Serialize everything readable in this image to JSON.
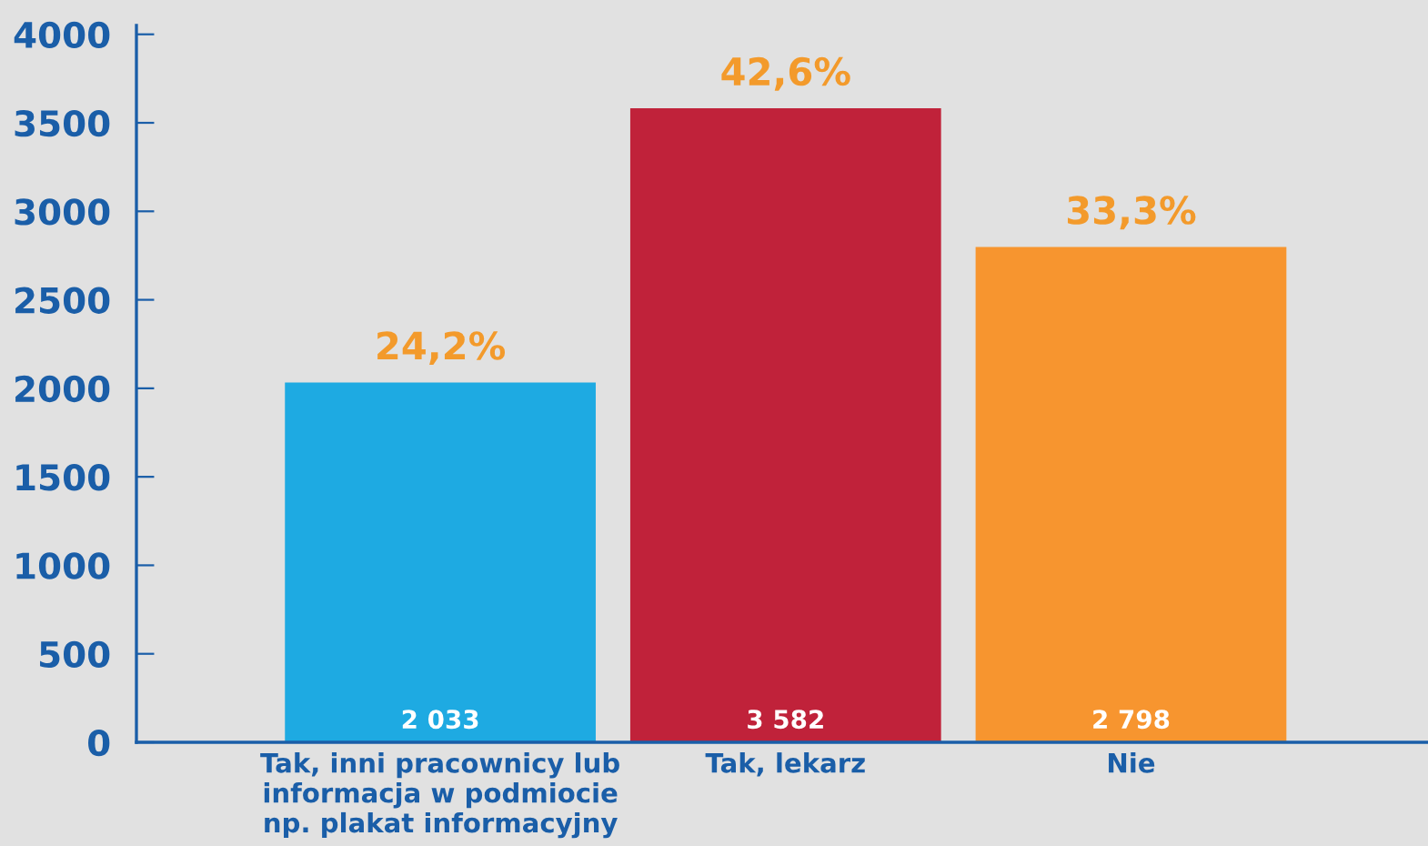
{
  "chart_data": {
    "type": "bar",
    "categories": [
      "Tak, inni pracownicy lub\ninformacja w podmiocie\nnp. plakat informacyjny",
      "Tak, lekarz",
      "Nie"
    ],
    "values": [
      2033,
      3582,
      2798
    ],
    "colors": [
      "#1eaae2",
      "#c0223a",
      "#f7952f"
    ],
    "value_labels": [
      "2 033",
      "3 582",
      "2 798"
    ],
    "annotations": [
      {
        "text": "24,2%",
        "x": "Tak, inni pracownicy lub\ninformacja w podmiocie\nnp. plakat informacyjny",
        "y": 2033
      },
      {
        "text": "42,6%",
        "x": "Tak, lekarz",
        "y": 3582
      },
      {
        "text": "33,3%",
        "x": "Nie",
        "y": 2798
      }
    ],
    "ylim": [
      0,
      4050
    ],
    "yticks": [
      0,
      500,
      1000,
      1500,
      2000,
      2500,
      3000,
      3500,
      4000
    ],
    "grid": false,
    "legend": false
  }
}
